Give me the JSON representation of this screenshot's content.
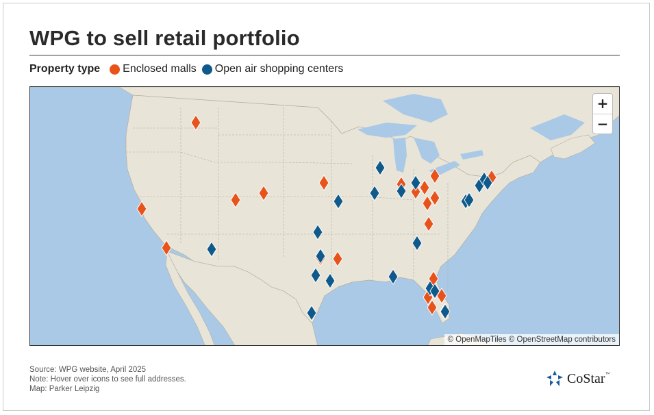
{
  "title": "WPG to sell retail portfolio",
  "legend": {
    "label": "Property type",
    "items": [
      {
        "label": "Enclosed malls",
        "color": "#e8531c"
      },
      {
        "label": "Open air shopping centers",
        "color": "#0f5a8a"
      }
    ]
  },
  "map": {
    "zoom_in": "+",
    "zoom_out": "−",
    "attribution": "© OpenMapTiles © OpenStreetMap contributors",
    "colors": {
      "water": "#a9c9e6",
      "land": "#e8e4d8",
      "border": "#b5ad9e",
      "mall": "#e8531c",
      "openair": "#0f5a8a"
    }
  },
  "footer": {
    "source": "Source: WPG website, April 2025",
    "note": "Note: Hover over icons to see full addresses.",
    "credit": "Map: Parker Leipzig"
  },
  "logo": {
    "word": "CoStar",
    "tm": "™"
  }
}
